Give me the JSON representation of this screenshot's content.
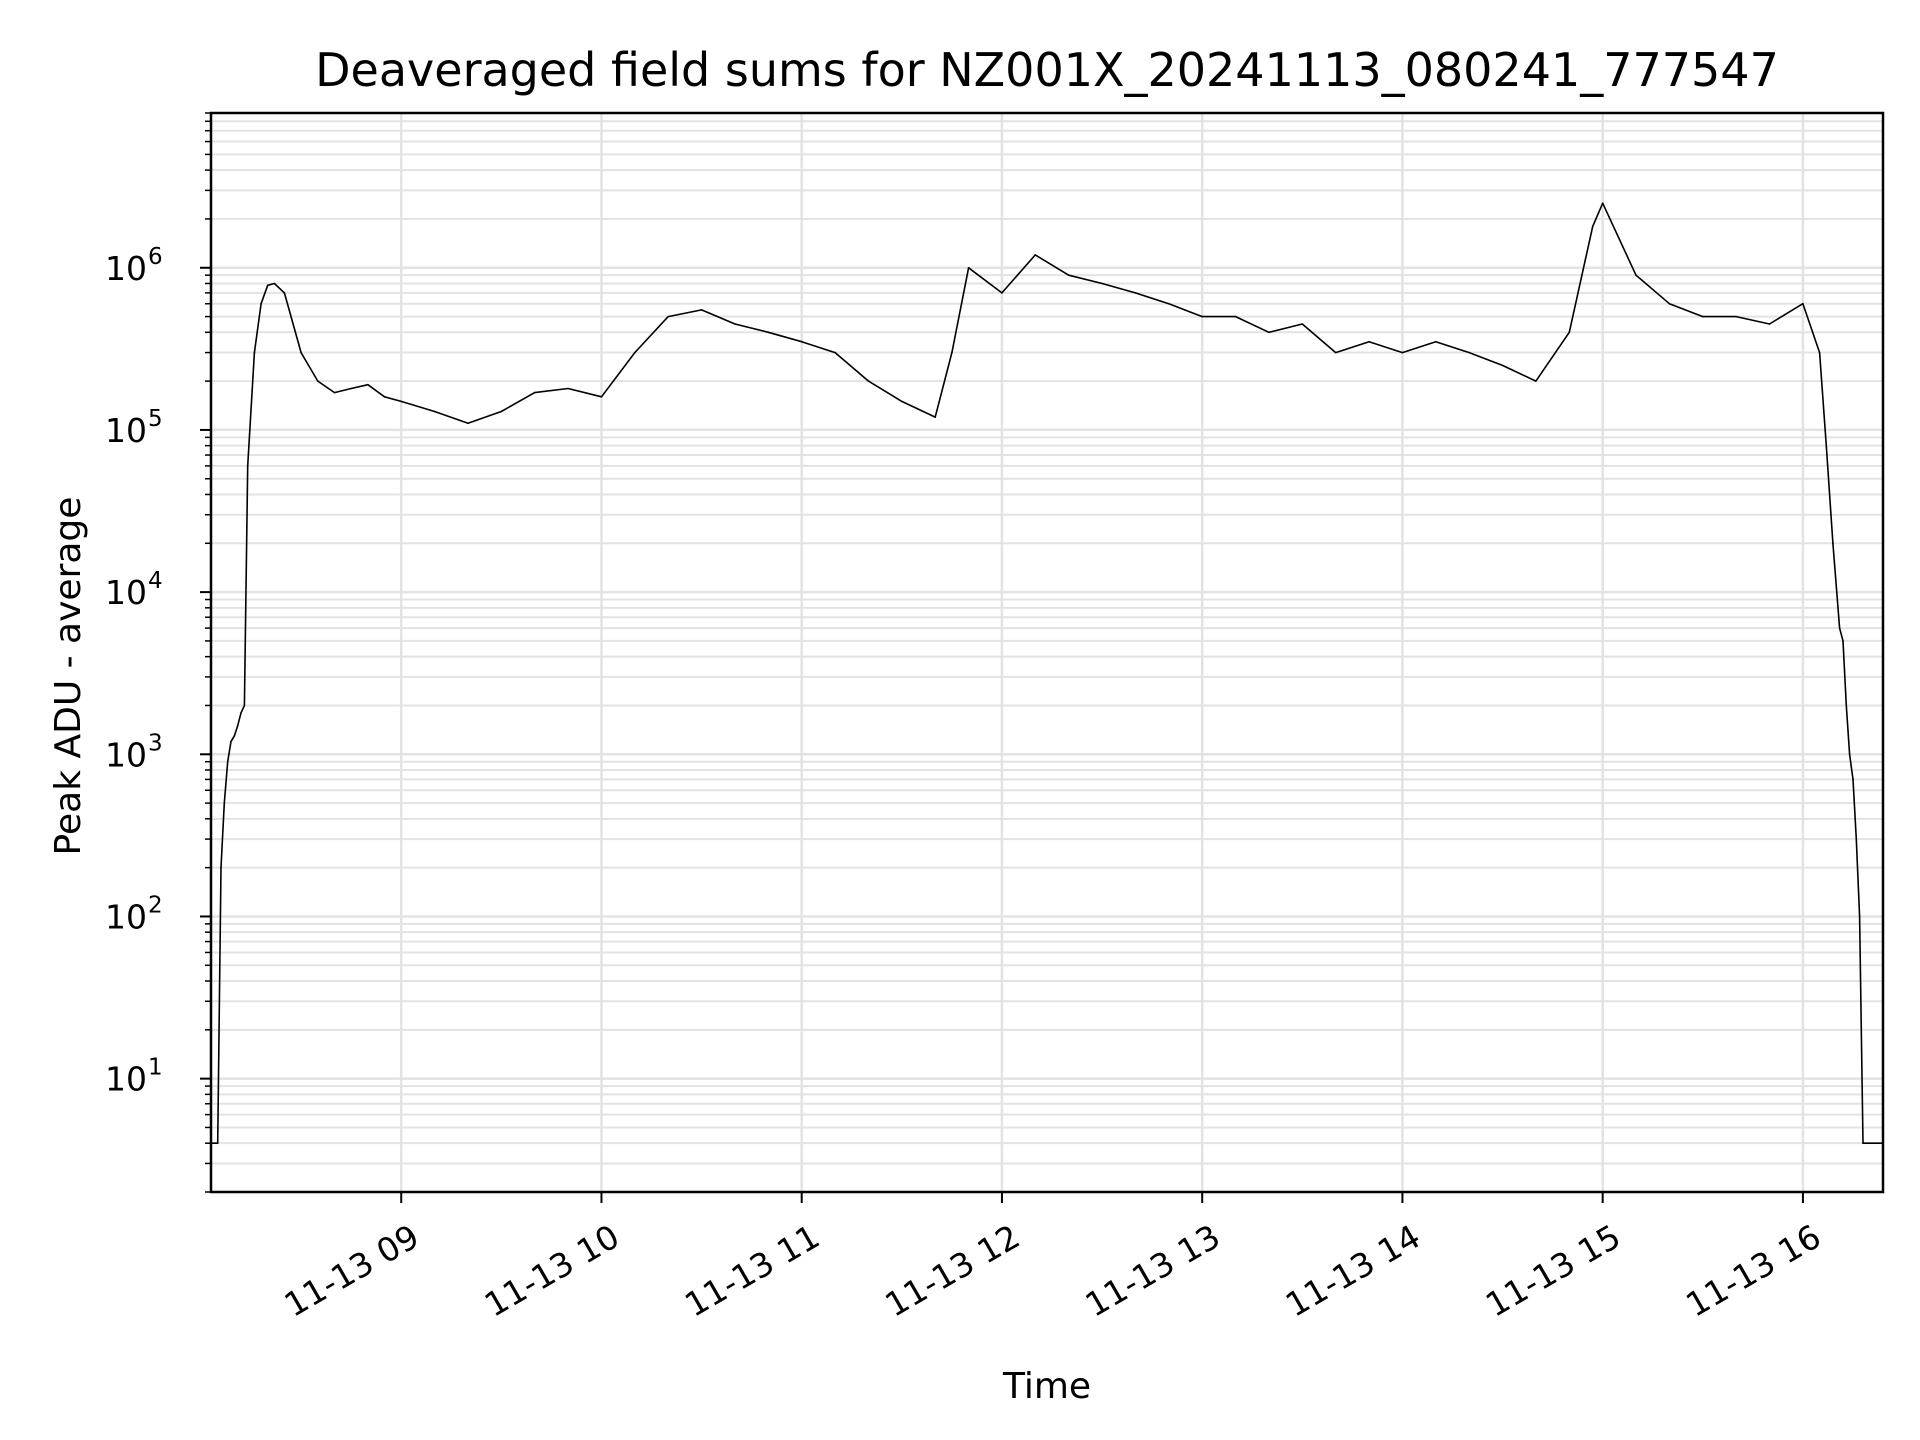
{
  "chart_data": {
    "type": "line",
    "title": "Deaveraged field sums for NZ001X_20241113_080241_777547",
    "xlabel": "Time",
    "ylabel": "Peak ADU - average",
    "yscale": "log",
    "ylim": [
      2,
      9000000
    ],
    "xlim": [
      "2024-11-13 08:03",
      "2024-11-13 16:24"
    ],
    "grid": true,
    "y_ticks": [
      {
        "value": 10,
        "base": "10",
        "exp": "1"
      },
      {
        "value": 100,
        "base": "10",
        "exp": "2"
      },
      {
        "value": 1000,
        "base": "10",
        "exp": "3"
      },
      {
        "value": 10000,
        "base": "10",
        "exp": "4"
      },
      {
        "value": 100000,
        "base": "10",
        "exp": "5"
      },
      {
        "value": 1000000,
        "base": "10",
        "exp": "6"
      }
    ],
    "x_ticks": [
      {
        "value": "2024-11-13 09:00",
        "label": "11-13 09"
      },
      {
        "value": "2024-11-13 10:00",
        "label": "11-13 10"
      },
      {
        "value": "2024-11-13 11:00",
        "label": "11-13 11"
      },
      {
        "value": "2024-11-13 12:00",
        "label": "11-13 12"
      },
      {
        "value": "2024-11-13 13:00",
        "label": "11-13 13"
      },
      {
        "value": "2024-11-13 14:00",
        "label": "11-13 14"
      },
      {
        "value": "2024-11-13 15:00",
        "label": "11-13 15"
      },
      {
        "value": "2024-11-13 16:00",
        "label": "11-13 16"
      }
    ],
    "line_color": "#000000",
    "series": [
      {
        "x": [
          "2024-11-13 08:03",
          "2024-11-13 08:04",
          "2024-11-13 08:05",
          "2024-11-13 08:06",
          "2024-11-13 08:07",
          "2024-11-13 08:08",
          "2024-11-13 08:09",
          "2024-11-13 08:10",
          "2024-11-13 08:11",
          "2024-11-13 08:12",
          "2024-11-13 08:13",
          "2024-11-13 08:14",
          "2024-11-13 08:16",
          "2024-11-13 08:18",
          "2024-11-13 08:20",
          "2024-11-13 08:22",
          "2024-11-13 08:25",
          "2024-11-13 08:30",
          "2024-11-13 08:35",
          "2024-11-13 08:40",
          "2024-11-13 08:45",
          "2024-11-13 08:50",
          "2024-11-13 08:55",
          "2024-11-13 09:00",
          "2024-11-13 09:10",
          "2024-11-13 09:20",
          "2024-11-13 09:30",
          "2024-11-13 09:40",
          "2024-11-13 09:50",
          "2024-11-13 10:00",
          "2024-11-13 10:10",
          "2024-11-13 10:20",
          "2024-11-13 10:30",
          "2024-11-13 10:40",
          "2024-11-13 10:50",
          "2024-11-13 11:00",
          "2024-11-13 11:10",
          "2024-11-13 11:20",
          "2024-11-13 11:30",
          "2024-11-13 11:40",
          "2024-11-13 11:45",
          "2024-11-13 11:50",
          "2024-11-13 12:00",
          "2024-11-13 12:10",
          "2024-11-13 12:20",
          "2024-11-13 12:30",
          "2024-11-13 12:40",
          "2024-11-13 12:50",
          "2024-11-13 13:00",
          "2024-11-13 13:10",
          "2024-11-13 13:20",
          "2024-11-13 13:30",
          "2024-11-13 13:40",
          "2024-11-13 13:50",
          "2024-11-13 14:00",
          "2024-11-13 14:10",
          "2024-11-13 14:20",
          "2024-11-13 14:30",
          "2024-11-13 14:40",
          "2024-11-13 14:50",
          "2024-11-13 14:57",
          "2024-11-13 15:00",
          "2024-11-13 15:10",
          "2024-11-13 15:20",
          "2024-11-13 15:30",
          "2024-11-13 15:40",
          "2024-11-13 15:50",
          "2024-11-13 16:00",
          "2024-11-13 16:05",
          "2024-11-13 16:07",
          "2024-11-13 16:09",
          "2024-11-13 16:11",
          "2024-11-13 16:12",
          "2024-11-13 16:13",
          "2024-11-13 16:14",
          "2024-11-13 16:15",
          "2024-11-13 16:16",
          "2024-11-13 16:17",
          "2024-11-13 16:18",
          "2024-11-13 16:19",
          "2024-11-13 16:20",
          "2024-11-13 16:22",
          "2024-11-13 16:24"
        ],
        "y": [
          4,
          4,
          4,
          200,
          500,
          900,
          1200,
          1300,
          1500,
          1800,
          2000,
          60000,
          300000,
          600000,
          780000,
          800000,
          700000,
          300000,
          200000,
          170000,
          180000,
          190000,
          160000,
          150000,
          130000,
          110000,
          130000,
          170000,
          180000,
          160000,
          300000,
          500000,
          550000,
          450000,
          400000,
          350000,
          300000,
          200000,
          150000,
          120000,
          300000,
          1000000,
          700000,
          1200000,
          900000,
          800000,
          700000,
          600000,
          500000,
          500000,
          400000,
          450000,
          300000,
          350000,
          300000,
          350000,
          300000,
          250000,
          200000,
          400000,
          1800000,
          2500000,
          900000,
          600000,
          500000,
          500000,
          450000,
          600000,
          300000,
          80000,
          20000,
          6000,
          5000,
          2000,
          1000,
          700,
          300,
          100,
          4,
          4,
          4,
          4,
          4
        ]
      }
    ]
  }
}
